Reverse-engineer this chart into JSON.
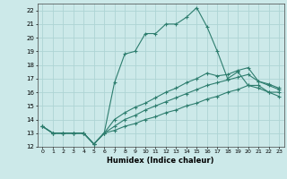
{
  "xlabel": "Humidex (Indice chaleur)",
  "background_color": "#cce9e9",
  "grid_color": "#aed4d4",
  "line_color": "#2d7d6e",
  "xlim": [
    -0.5,
    23.5
  ],
  "ylim": [
    12,
    22.5
  ],
  "yticks": [
    12,
    13,
    14,
    15,
    16,
    17,
    18,
    19,
    20,
    21,
    22
  ],
  "xticks": [
    0,
    1,
    2,
    3,
    4,
    5,
    6,
    7,
    8,
    9,
    10,
    11,
    12,
    13,
    14,
    15,
    16,
    17,
    18,
    19,
    20,
    21,
    22,
    23
  ],
  "series": [
    [
      13.5,
      13.0,
      13.0,
      13.0,
      13.0,
      12.2,
      13.0,
      16.7,
      18.8,
      19.0,
      20.3,
      20.3,
      21.0,
      21.0,
      21.5,
      22.2,
      20.8,
      19.0,
      17.0,
      17.5,
      16.5,
      16.5,
      16.0,
      16.0
    ],
    [
      13.5,
      13.0,
      13.0,
      13.0,
      13.0,
      12.2,
      13.0,
      13.2,
      13.5,
      13.7,
      14.0,
      14.2,
      14.5,
      14.7,
      15.0,
      15.2,
      15.5,
      15.7,
      16.0,
      16.2,
      16.5,
      16.3,
      16.0,
      15.7
    ],
    [
      13.5,
      13.0,
      13.0,
      13.0,
      13.0,
      12.2,
      13.0,
      13.5,
      14.0,
      14.3,
      14.7,
      15.0,
      15.3,
      15.6,
      15.9,
      16.2,
      16.5,
      16.7,
      16.9,
      17.1,
      17.3,
      16.8,
      16.5,
      16.2
    ],
    [
      13.5,
      13.0,
      13.0,
      13.0,
      13.0,
      12.2,
      13.0,
      14.0,
      14.5,
      14.9,
      15.2,
      15.6,
      16.0,
      16.3,
      16.7,
      17.0,
      17.4,
      17.2,
      17.3,
      17.6,
      17.8,
      16.8,
      16.6,
      16.3
    ]
  ]
}
